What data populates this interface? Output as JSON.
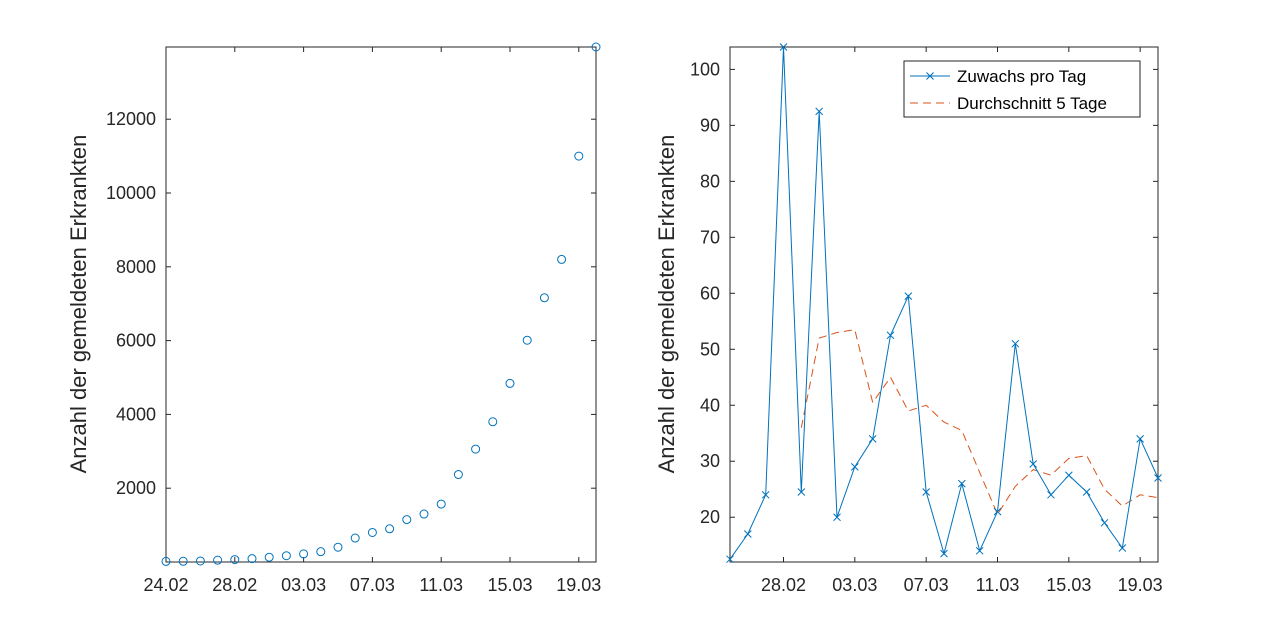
{
  "colors": {
    "series1": "#0072BD",
    "series2": "#D95319",
    "axis": "#262626"
  },
  "chart_data": [
    {
      "type": "scatter",
      "marker": "circle",
      "ylabel": "Anzahl der gemeldeten Erkrankten",
      "xlim": [
        "2020-02-24",
        "2020-03-20"
      ],
      "ylim": [
        0,
        13957
      ],
      "xticks": [
        "24.02",
        "28.02",
        "03.03",
        "07.03",
        "11.03",
        "15.03",
        "19.03"
      ],
      "yticks": [
        2000,
        4000,
        6000,
        8000,
        10000,
        12000
      ],
      "series": [
        {
          "x": [
            "2020-02-24",
            "2020-02-25",
            "2020-02-26",
            "2020-02-27",
            "2020-02-28",
            "2020-02-29",
            "2020-03-01",
            "2020-03-02",
            "2020-03-03",
            "2020-03-04",
            "2020-03-05",
            "2020-03-06",
            "2020-03-07",
            "2020-03-08",
            "2020-03-09",
            "2020-03-10",
            "2020-03-11",
            "2020-03-12",
            "2020-03-13",
            "2020-03-14",
            "2020-03-15",
            "2020-03-16",
            "2020-03-17",
            "2020-03-18",
            "2020-03-19",
            "2020-03-20"
          ],
          "y": [
            16,
            20,
            28,
            50,
            65,
            90,
            130,
            170,
            220,
            280,
            400,
            650,
            800,
            900,
            1150,
            1300,
            1570,
            2370,
            3060,
            3800,
            4840,
            6010,
            7160,
            8200,
            11000,
            13957
          ]
        }
      ],
      "grid": false
    },
    {
      "type": "line",
      "ylabel": "Anzahl der gemeldeten Erkrankten",
      "xlim": [
        "2020-02-25",
        "2020-03-20"
      ],
      "ylim": [
        12,
        104
      ],
      "xticks": [
        "28.02",
        "03.03",
        "07.03",
        "11.03",
        "15.03",
        "19.03"
      ],
      "yticks": [
        20,
        30,
        40,
        50,
        60,
        70,
        80,
        90,
        100
      ],
      "series": [
        {
          "name": "Zuwachs pro Tag",
          "style": "solid",
          "marker": "x",
          "x": [
            "2020-02-25",
            "2020-02-26",
            "2020-02-27",
            "2020-02-28",
            "2020-02-29",
            "2020-03-01",
            "2020-03-02",
            "2020-03-03",
            "2020-03-04",
            "2020-03-05",
            "2020-03-06",
            "2020-03-07",
            "2020-03-08",
            "2020-03-09",
            "2020-03-10",
            "2020-03-11",
            "2020-03-12",
            "2020-03-13",
            "2020-03-14",
            "2020-03-15",
            "2020-03-16",
            "2020-03-17",
            "2020-03-18",
            "2020-03-19",
            "2020-03-20"
          ],
          "y": [
            12.5,
            17,
            24,
            104,
            24.5,
            92.5,
            20,
            29,
            34,
            52.5,
            59.5,
            24.5,
            13.5,
            26,
            14,
            21,
            51,
            29.5,
            24,
            27.5,
            24.5,
            19,
            14.5,
            34,
            27
          ]
        },
        {
          "name": "Durchschnitt 5 Tage",
          "style": "dashed",
          "x": [
            "2020-02-29",
            "2020-03-01",
            "2020-03-02",
            "2020-03-03",
            "2020-03-04",
            "2020-03-05",
            "2020-03-06",
            "2020-03-07",
            "2020-03-08",
            "2020-03-09",
            "2020-03-10",
            "2020-03-11",
            "2020-03-12",
            "2020-03-13",
            "2020-03-14",
            "2020-03-15",
            "2020-03-16",
            "2020-03-17",
            "2020-03-18",
            "2020-03-19",
            "2020-03-20"
          ],
          "y": [
            36,
            52,
            53,
            53.5,
            40.5,
            45,
            39,
            40,
            37,
            35.5,
            28,
            20.5,
            25.5,
            28.5,
            27.5,
            30.5,
            31,
            25,
            22,
            24,
            23.5
          ]
        }
      ],
      "legend": "top-right",
      "grid": false
    }
  ]
}
